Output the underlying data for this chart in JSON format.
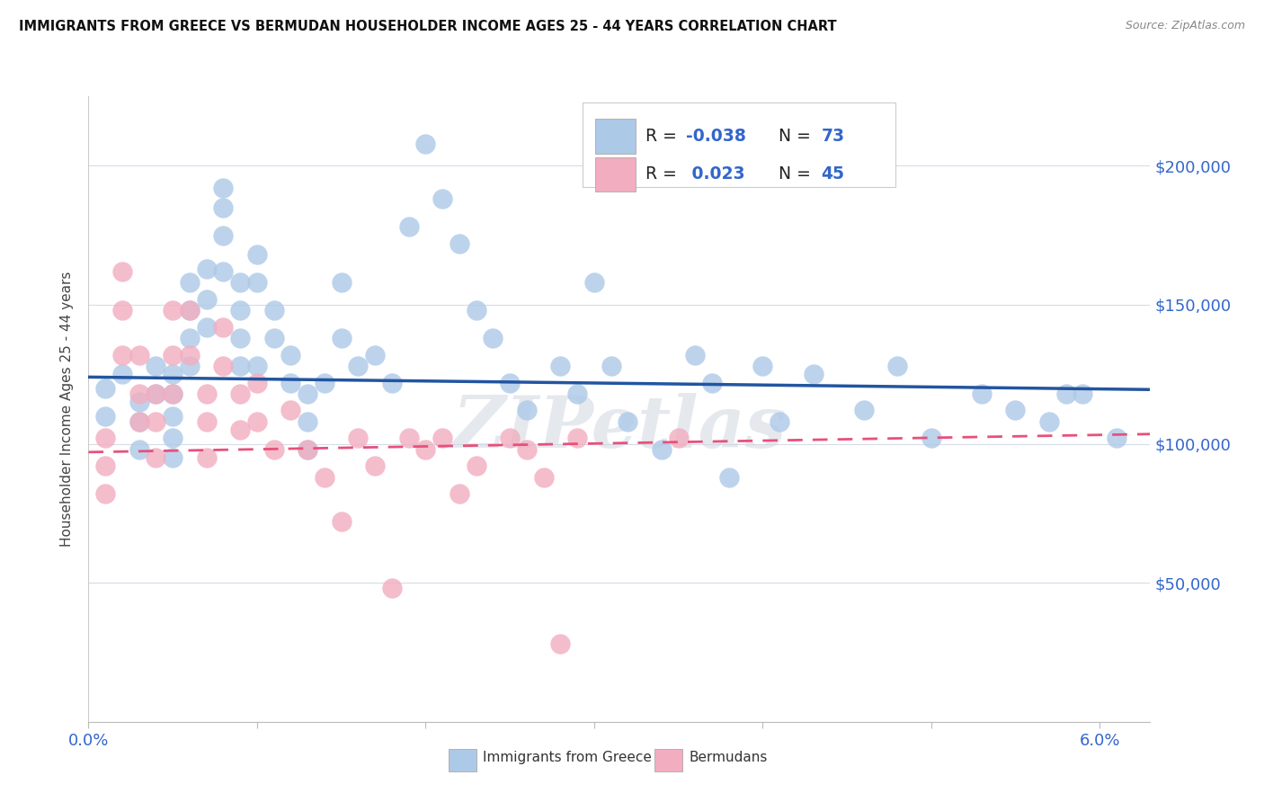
{
  "title": "IMMIGRANTS FROM GREECE VS BERMUDAN HOUSEHOLDER INCOME AGES 25 - 44 YEARS CORRELATION CHART",
  "source": "Source: ZipAtlas.com",
  "ylabel": "Householder Income Ages 25 - 44 years",
  "xlim": [
    0.0,
    0.063
  ],
  "ylim": [
    0,
    225000
  ],
  "ytick_positions": [
    0,
    50000,
    100000,
    150000,
    200000
  ],
  "ytick_labels": [
    "",
    "$50,000",
    "$100,000",
    "$150,000",
    "$200,000"
  ],
  "xtick_positions": [
    0.0,
    0.01,
    0.02,
    0.03,
    0.04,
    0.05,
    0.06
  ],
  "xtick_labels": [
    "0.0%",
    "",
    "",
    "",
    "",
    "",
    "6.0%"
  ],
  "blue_color": "#adc9e8",
  "pink_color": "#f2adc0",
  "blue_line_color": "#2255a0",
  "pink_line_color": "#e8507a",
  "watermark": "ZIPetlas",
  "legend_blue_r": "-0.038",
  "legend_blue_n": "73",
  "legend_pink_r": "0.023",
  "legend_pink_n": "45",
  "blue_x": [
    0.001,
    0.001,
    0.002,
    0.003,
    0.003,
    0.003,
    0.004,
    0.004,
    0.005,
    0.005,
    0.005,
    0.005,
    0.005,
    0.006,
    0.006,
    0.006,
    0.006,
    0.007,
    0.007,
    0.007,
    0.008,
    0.008,
    0.008,
    0.008,
    0.009,
    0.009,
    0.009,
    0.009,
    0.01,
    0.01,
    0.01,
    0.011,
    0.011,
    0.012,
    0.012,
    0.013,
    0.013,
    0.013,
    0.014,
    0.015,
    0.015,
    0.016,
    0.017,
    0.018,
    0.019,
    0.02,
    0.021,
    0.022,
    0.023,
    0.024,
    0.025,
    0.026,
    0.028,
    0.029,
    0.03,
    0.031,
    0.032,
    0.034,
    0.036,
    0.037,
    0.038,
    0.04,
    0.041,
    0.043,
    0.046,
    0.048,
    0.05,
    0.053,
    0.055,
    0.057,
    0.058,
    0.059,
    0.061
  ],
  "blue_y": [
    120000,
    110000,
    125000,
    115000,
    108000,
    98000,
    128000,
    118000,
    125000,
    118000,
    110000,
    102000,
    95000,
    158000,
    148000,
    138000,
    128000,
    163000,
    152000,
    142000,
    192000,
    185000,
    175000,
    162000,
    158000,
    148000,
    138000,
    128000,
    168000,
    158000,
    128000,
    148000,
    138000,
    132000,
    122000,
    118000,
    108000,
    98000,
    122000,
    158000,
    138000,
    128000,
    132000,
    122000,
    178000,
    208000,
    188000,
    172000,
    148000,
    138000,
    122000,
    112000,
    128000,
    118000,
    158000,
    128000,
    108000,
    98000,
    132000,
    122000,
    88000,
    128000,
    108000,
    125000,
    112000,
    128000,
    102000,
    118000,
    112000,
    108000,
    118000,
    118000,
    102000
  ],
  "pink_x": [
    0.001,
    0.001,
    0.001,
    0.002,
    0.002,
    0.002,
    0.003,
    0.003,
    0.003,
    0.004,
    0.004,
    0.004,
    0.005,
    0.005,
    0.005,
    0.006,
    0.006,
    0.007,
    0.007,
    0.007,
    0.008,
    0.008,
    0.009,
    0.009,
    0.01,
    0.01,
    0.011,
    0.012,
    0.013,
    0.014,
    0.015,
    0.016,
    0.017,
    0.018,
    0.019,
    0.02,
    0.021,
    0.022,
    0.023,
    0.025,
    0.026,
    0.027,
    0.028,
    0.029,
    0.035
  ],
  "pink_y": [
    102000,
    92000,
    82000,
    162000,
    148000,
    132000,
    132000,
    118000,
    108000,
    118000,
    108000,
    95000,
    148000,
    132000,
    118000,
    148000,
    132000,
    118000,
    108000,
    95000,
    142000,
    128000,
    118000,
    105000,
    122000,
    108000,
    98000,
    112000,
    98000,
    88000,
    72000,
    102000,
    92000,
    48000,
    102000,
    98000,
    102000,
    82000,
    92000,
    102000,
    98000,
    88000,
    28000,
    102000,
    102000
  ],
  "blue_line_x": [
    0.0,
    0.063
  ],
  "blue_line_y": [
    124000,
    119500
  ],
  "pink_line_x": [
    0.0,
    0.063
  ],
  "pink_line_y": [
    97000,
    103500
  ]
}
